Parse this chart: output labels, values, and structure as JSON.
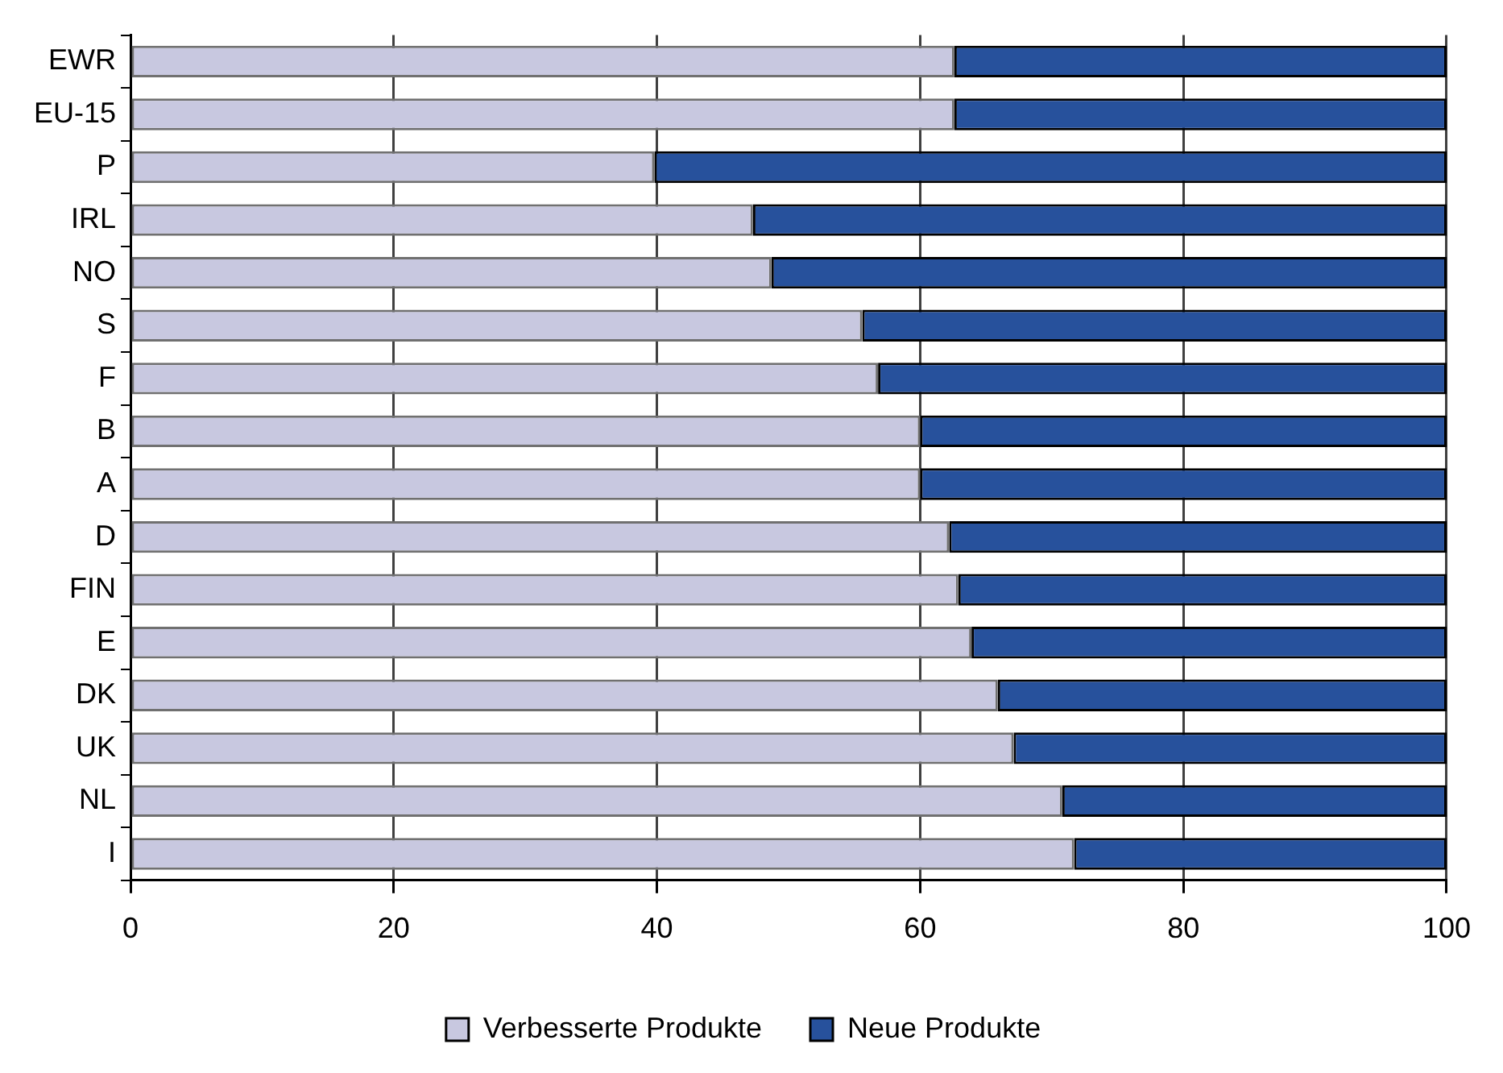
{
  "chart_data": {
    "type": "bar",
    "orientation": "horizontal",
    "stacked": true,
    "categories": [
      "EWR",
      "EU-15",
      "P",
      "IRL",
      "NO",
      "S",
      "F",
      "B",
      "A",
      "D",
      "FIN",
      "E",
      "DK",
      "UK",
      "NL",
      "I"
    ],
    "series": [
      {
        "name": "Verbesserte Produkte",
        "color": "#c8c8e0",
        "values": [
          62.6,
          62.6,
          39.8,
          47.3,
          48.7,
          55.6,
          56.8,
          60.0,
          60.0,
          62.2,
          62.9,
          63.9,
          65.9,
          67.1,
          70.8,
          71.7
        ]
      },
      {
        "name": "Neue Produkte",
        "color": "#27519c",
        "values": [
          37.4,
          37.4,
          60.2,
          52.7,
          51.3,
          44.4,
          43.2,
          40.0,
          40.0,
          37.8,
          37.1,
          36.1,
          34.1,
          32.9,
          29.2,
          28.3
        ]
      }
    ],
    "xlim": [
      0,
      100
    ],
    "xticks": [
      0,
      20,
      40,
      60,
      80,
      100
    ],
    "grid": "x",
    "legend": "bottom"
  }
}
